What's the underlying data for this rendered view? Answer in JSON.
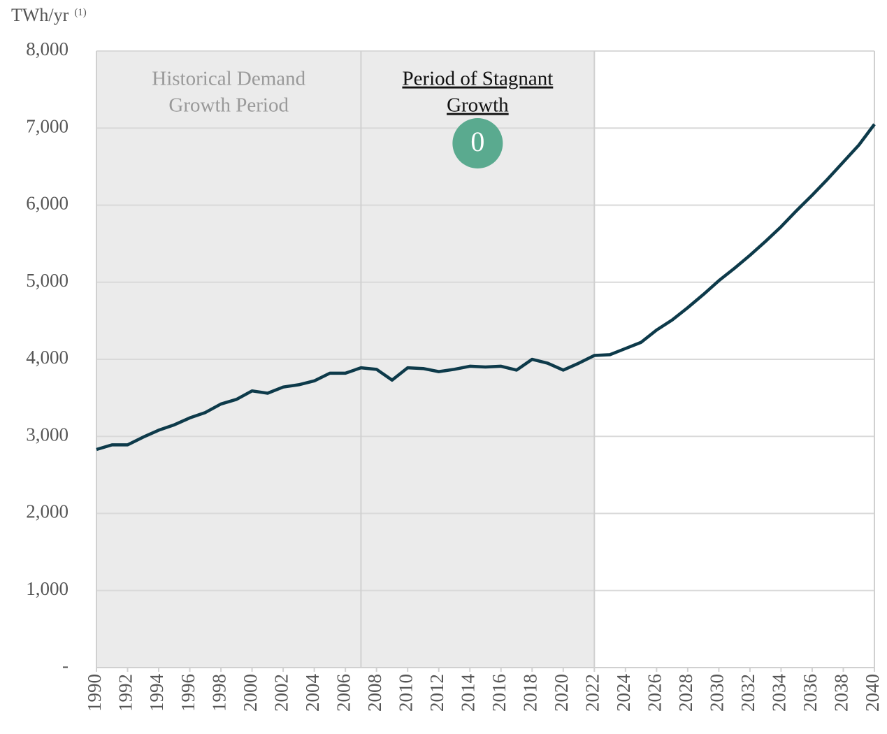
{
  "chart_data": {
    "type": "line",
    "y_label": "TWh/yr",
    "y_label_note": "(1)",
    "x": [
      1990,
      1991,
      1992,
      1993,
      1994,
      1995,
      1996,
      1997,
      1998,
      1999,
      2000,
      2001,
      2002,
      2003,
      2004,
      2005,
      2006,
      2007,
      2008,
      2009,
      2010,
      2011,
      2012,
      2013,
      2014,
      2015,
      2016,
      2017,
      2018,
      2019,
      2020,
      2021,
      2022,
      2023,
      2024,
      2025,
      2026,
      2027,
      2028,
      2029,
      2030,
      2031,
      2032,
      2033,
      2034,
      2035,
      2036,
      2037,
      2038,
      2039,
      2040
    ],
    "series": [
      {
        "color": "#0d3a4a",
        "values": [
          2830,
          2890,
          2890,
          2990,
          3080,
          3150,
          3240,
          3310,
          3420,
          3480,
          3590,
          3560,
          3640,
          3670,
          3720,
          3820,
          3820,
          3890,
          3870,
          3730,
          3890,
          3880,
          3840,
          3870,
          3910,
          3900,
          3910,
          3860,
          4000,
          3950,
          3860,
          3950,
          4050,
          4060,
          4140,
          4220,
          4380,
          4510,
          4670,
          4840,
          5020,
          5180,
          5350,
          5530,
          5720,
          5930,
          6130,
          6340,
          6560,
          6780,
          7050
        ]
      }
    ],
    "xlim": [
      1990,
      2040
    ],
    "xticks": [
      1990,
      1992,
      1994,
      1996,
      1998,
      2000,
      2002,
      2004,
      2006,
      2008,
      2010,
      2012,
      2014,
      2016,
      2018,
      2020,
      2022,
      2024,
      2026,
      2028,
      2030,
      2032,
      2034,
      2036,
      2038,
      2040
    ],
    "ylim": [
      0,
      8000
    ],
    "yticks": [
      {
        "value": 0,
        "label": "-"
      },
      {
        "value": 1000,
        "label": "1,000"
      },
      {
        "value": 2000,
        "label": "2,000"
      },
      {
        "value": 3000,
        "label": "3,000"
      },
      {
        "value": 4000,
        "label": "4,000"
      },
      {
        "value": 5000,
        "label": "5,000"
      },
      {
        "value": 6000,
        "label": "6,000"
      },
      {
        "value": 7000,
        "label": "7,000"
      },
      {
        "value": 8000,
        "label": "8,000"
      }
    ],
    "grid": true,
    "shaded_regions": [
      {
        "start": 1990,
        "end": 2007,
        "label_lines": [
          "Historical Demand",
          "Growth Period"
        ],
        "color": "#ebebeb"
      },
      {
        "start": 2007,
        "end": 2022,
        "label_lines": [
          "Period of Stagnant",
          "Growth"
        ],
        "badge": "0",
        "badge_color": "#5aaa8f",
        "color": "#ebebeb"
      }
    ]
  }
}
